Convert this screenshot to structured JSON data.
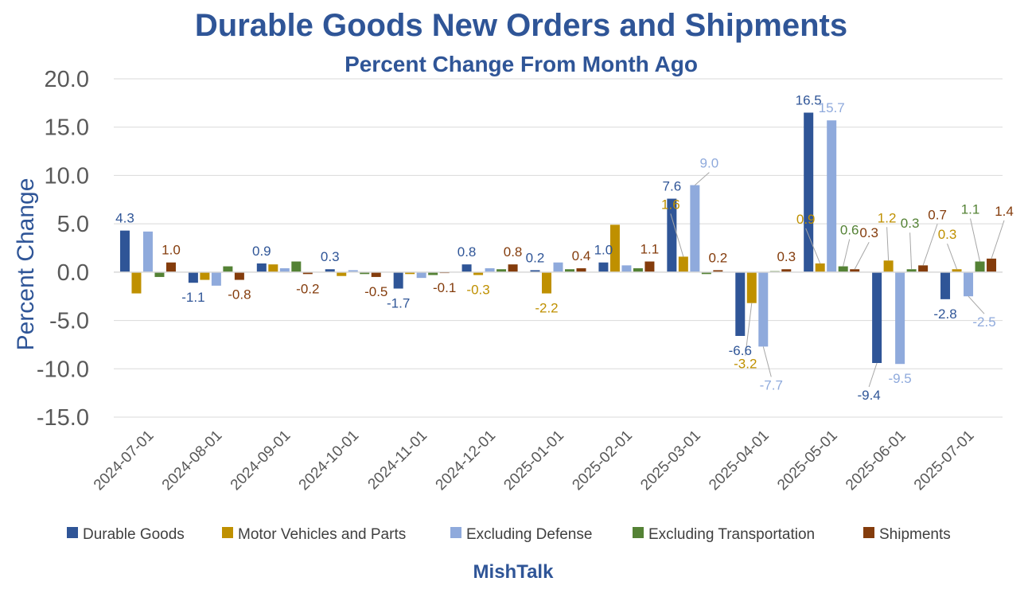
{
  "chart_data": {
    "type": "bar",
    "title": "Durable Goods New Orders and Shipments",
    "subtitle": "Percent Change From Month Ago",
    "xlabel": "",
    "ylabel": "Percent Change",
    "source": "MishTalk",
    "ylim": [
      -15,
      20
    ],
    "yticks": [
      "20.0",
      "15.0",
      "10.0",
      "5.0",
      "0.0",
      "-5.0",
      "-10.0",
      "-15.0"
    ],
    "grid": true,
    "legend_position": "bottom",
    "categories": [
      "2024-07-01",
      "2024-08-01",
      "2024-09-01",
      "2024-10-01",
      "2024-11-01",
      "2024-12-01",
      "2025-01-01",
      "2025-02-01",
      "2025-03-01",
      "2025-04-01",
      "2025-05-01",
      "2025-06-01",
      "2025-07-01"
    ],
    "series": [
      {
        "name": "Durable Goods",
        "color": "#2f5597",
        "values": [
          4.3,
          -1.1,
          0.9,
          0.3,
          -1.7,
          0.8,
          0.2,
          1.0,
          7.6,
          -6.6,
          16.5,
          -9.4,
          -2.8
        ],
        "labels": [
          "4.3",
          "-1.1",
          "0.9",
          "0.3",
          "-1.7",
          "0.8",
          "0.2",
          "1.0",
          "7.6",
          "-6.6",
          "16.5",
          "-9.4",
          "-2.8"
        ]
      },
      {
        "name": "Motor Vehicles and Parts",
        "color": "#bf9000",
        "values": [
          -2.2,
          -0.8,
          0.8,
          -0.4,
          -0.2,
          -0.3,
          -2.2,
          4.9,
          1.6,
          -3.2,
          0.9,
          1.2,
          0.3
        ],
        "labels": [
          "",
          "",
          "",
          "",
          "",
          "-0.3",
          "-2.2",
          "",
          "1.6",
          "-3.2",
          "0.9",
          "1.2",
          "0.3"
        ]
      },
      {
        "name": "Excluding Defense",
        "color": "#8faadc",
        "values": [
          4.2,
          -1.4,
          0.4,
          0.2,
          -0.6,
          0.4,
          1.0,
          0.7,
          9.0,
          -7.7,
          15.7,
          -9.5,
          -2.5
        ],
        "labels": [
          "",
          "",
          "",
          "",
          "",
          "",
          "",
          "",
          "9.0",
          "-7.7",
          "15.7",
          "-9.5",
          "-2.5"
        ]
      },
      {
        "name": "Excluding Transportation",
        "color": "#548235",
        "values": [
          -0.5,
          0.6,
          1.1,
          -0.2,
          -0.3,
          0.3,
          0.3,
          0.4,
          -0.2,
          0.1,
          0.6,
          0.3,
          1.1
        ],
        "labels": [
          "",
          "",
          "",
          "",
          "",
          "",
          "",
          "",
          "",
          "",
          "0.6",
          "0.3",
          "1.1"
        ]
      },
      {
        "name": "Shipments",
        "color": "#843c0c",
        "values": [
          1.0,
          -0.8,
          -0.2,
          -0.5,
          -0.1,
          0.8,
          0.4,
          1.1,
          0.2,
          0.3,
          0.3,
          0.7,
          1.4
        ],
        "labels": [
          "1.0",
          "-0.8",
          "-0.2",
          "-0.5",
          "-0.1",
          "0.8",
          "0.4",
          "1.1",
          "0.2",
          "0.3",
          "0.3",
          "0.7",
          "1.4"
        ]
      }
    ]
  }
}
